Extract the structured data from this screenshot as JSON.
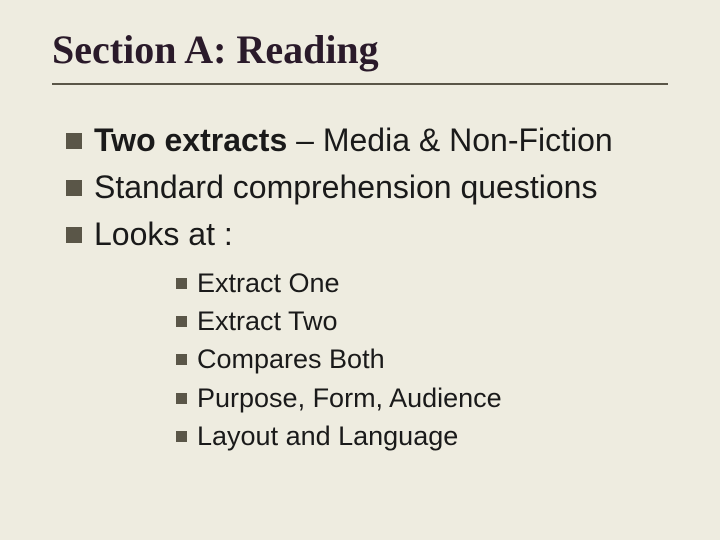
{
  "colors": {
    "background": "#eeece0",
    "title_text": "#2a1a2a",
    "body_text": "#1a1a1a",
    "bullet": "#5a5648",
    "rule": "#5a5648"
  },
  "typography": {
    "title_family": "Georgia, Times New Roman, serif",
    "body_family": "Arial, Helvetica, sans-serif",
    "title_fontsize": 40,
    "level1_fontsize": 32,
    "level2_fontsize": 27,
    "title_weight": "bold"
  },
  "title": "Section A: Reading",
  "bullets_level1": [
    {
      "bold": "Two extracts",
      "rest": " – Media & Non-Fiction"
    },
    {
      "text": "Standard comprehension questions"
    },
    {
      "text": "Looks at :"
    }
  ],
  "bullets_level2": [
    "Extract One",
    "Extract Two",
    "Compares Both",
    "Purpose, Form, Audience",
    "Layout and Language"
  ]
}
